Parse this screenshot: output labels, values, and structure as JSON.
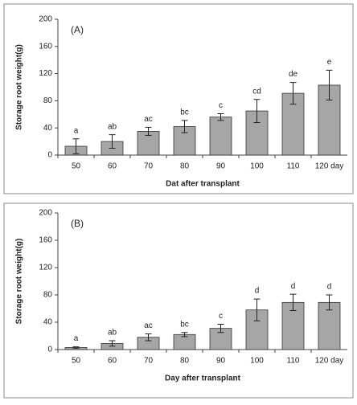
{
  "chart_data": [
    {
      "type": "bar",
      "panel_label": "(A)",
      "ylabel": "Storage root weight(g)",
      "xlabel": "Dat after transplant",
      "categories": [
        "50",
        "60",
        "70",
        "80",
        "90",
        "100",
        "110",
        "120 day"
      ],
      "values": [
        13,
        20,
        35,
        42,
        56,
        65,
        91,
        103
      ],
      "errors": [
        11,
        10,
        6,
        9,
        5,
        17,
        16,
        22
      ],
      "bar_labels": [
        "a",
        "ab",
        "ac",
        "bc",
        "c",
        "cd",
        "de",
        "e"
      ],
      "color": "#a6a6a6",
      "ylim": [
        0,
        200
      ],
      "yticks": [
        0,
        40,
        80,
        120,
        160,
        200
      ]
    },
    {
      "type": "bar",
      "panel_label": "(B)",
      "ylabel": "Storage root weight(g)",
      "xlabel": "Day after transplant",
      "categories": [
        "50",
        "60",
        "70",
        "80",
        "90",
        "100",
        "110",
        "120 day"
      ],
      "values": [
        3,
        9,
        18,
        22,
        31,
        58,
        69,
        69
      ],
      "errors": [
        1,
        4,
        5,
        3,
        6,
        16,
        12,
        11
      ],
      "bar_labels": [
        "a",
        "ab",
        "ac",
        "bc",
        "c",
        "d",
        "d",
        "d"
      ],
      "color": "#a6a6a6",
      "ylim": [
        0,
        200
      ],
      "yticks": [
        0,
        40,
        80,
        120,
        160,
        200
      ]
    }
  ]
}
